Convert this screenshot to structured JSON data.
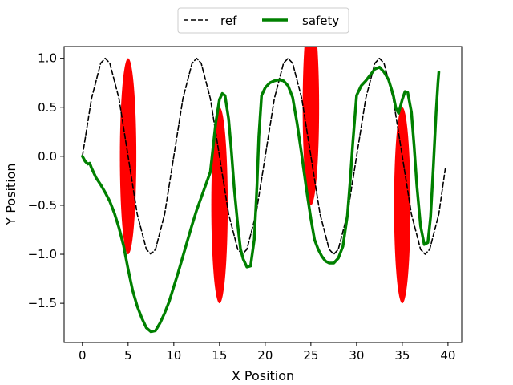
{
  "chart_data": {
    "type": "line",
    "xlabel": "X Position",
    "ylabel": "Y Position",
    "xlim": [
      -2,
      41.5
    ],
    "ylim": [
      -1.9,
      1.12
    ],
    "xticks": [
      0,
      5,
      10,
      15,
      20,
      25,
      30,
      35,
      40
    ],
    "yticks": [
      -1.5,
      -1.0,
      -0.5,
      0.0,
      0.5,
      1.0
    ],
    "ytick_labels": [
      "−1.5",
      "−1.0",
      "−0.5",
      "0.0",
      "0.5",
      "1.0"
    ],
    "grid": false,
    "legend": {
      "placement": "top-center-outside",
      "columns": 2
    },
    "series": [
      {
        "name": "ref",
        "style": "dashed",
        "color": "#000000",
        "x": [
          0,
          1,
          2,
          2.5,
          3,
          4,
          5,
          6,
          7,
          7.5,
          8,
          9,
          10,
          11,
          12,
          12.5,
          13,
          14,
          15,
          16,
          17,
          17.5,
          18,
          19,
          20,
          21,
          22,
          22.5,
          23,
          24,
          25,
          26,
          27,
          27.5,
          28,
          29,
          30,
          31,
          32,
          32.5,
          33,
          34,
          35,
          36,
          37,
          37.5,
          38,
          39,
          39.7
        ],
        "y": [
          0,
          0.59,
          0.95,
          1.0,
          0.95,
          0.59,
          0,
          -0.59,
          -0.95,
          -1.0,
          -0.95,
          -0.59,
          0,
          0.59,
          0.95,
          1.0,
          0.95,
          0.59,
          0,
          -0.59,
          -0.95,
          -1.0,
          -0.95,
          -0.59,
          0,
          0.59,
          0.95,
          1.0,
          0.95,
          0.59,
          0,
          -0.59,
          -0.95,
          -1.0,
          -0.95,
          -0.59,
          0,
          0.59,
          0.95,
          1.0,
          0.95,
          0.59,
          0,
          -0.59,
          -0.95,
          -1.0,
          -0.95,
          -0.59,
          -0.13
        ]
      },
      {
        "name": "safety",
        "style": "solid",
        "color": "#008000",
        "x": [
          0,
          0.3,
          0.6,
          0.8,
          1.0,
          1.5,
          2.0,
          2.5,
          3.0,
          3.5,
          4.0,
          4.5,
          5.0,
          5.5,
          6.0,
          6.5,
          7.0,
          7.5,
          8.0,
          8.5,
          9.0,
          9.5,
          10.0,
          10.5,
          11.0,
          11.5,
          12.0,
          12.5,
          13.0,
          13.5,
          14.0,
          14.3,
          14.6,
          15.0,
          15.3,
          15.6,
          16.0,
          16.3,
          16.6,
          17.0,
          17.3,
          17.6,
          18.0,
          18.4,
          18.8,
          19.1,
          19.3,
          19.6,
          20.0,
          20.5,
          21.0,
          21.5,
          22.0,
          22.5,
          23.0,
          23.5,
          24.0,
          24.5,
          25.0,
          25.4,
          25.8,
          26.2,
          26.6,
          27.0,
          27.5,
          28.0,
          28.5,
          29.0,
          29.3,
          29.6,
          30.0,
          30.5,
          31.0,
          31.5,
          32.0,
          32.5,
          33.0,
          33.5,
          34.0,
          34.3,
          34.6,
          35.0,
          35.3,
          35.6,
          36.0,
          36.3,
          36.6,
          37.0,
          37.4,
          37.8,
          38.1,
          38.4,
          38.7,
          38.9,
          39.0
        ],
        "y": [
          0,
          -0.05,
          -0.08,
          -0.07,
          -0.12,
          -0.22,
          -0.29,
          -0.37,
          -0.46,
          -0.58,
          -0.73,
          -0.91,
          -1.15,
          -1.37,
          -1.53,
          -1.65,
          -1.75,
          -1.79,
          -1.78,
          -1.7,
          -1.6,
          -1.48,
          -1.33,
          -1.18,
          -1.02,
          -0.86,
          -0.7,
          -0.55,
          -0.42,
          -0.29,
          -0.16,
          0.1,
          0.35,
          0.58,
          0.64,
          0.62,
          0.38,
          0.05,
          -0.32,
          -0.7,
          -0.95,
          -1.05,
          -1.13,
          -1.12,
          -0.85,
          -0.3,
          0.2,
          0.62,
          0.7,
          0.75,
          0.77,
          0.78,
          0.77,
          0.72,
          0.6,
          0.33,
          0.01,
          -0.33,
          -0.64,
          -0.85,
          -0.95,
          -1.02,
          -1.07,
          -1.09,
          -1.09,
          -1.04,
          -0.92,
          -0.6,
          -0.25,
          0.15,
          0.62,
          0.72,
          0.77,
          0.83,
          0.89,
          0.91,
          0.86,
          0.78,
          0.63,
          0.49,
          0.44,
          0.58,
          0.66,
          0.65,
          0.45,
          0.1,
          -0.3,
          -0.71,
          -0.9,
          -0.88,
          -0.62,
          -0.1,
          0.45,
          0.75,
          0.86
        ]
      }
    ],
    "obstacles": [
      {
        "x": 5,
        "y": 0.0,
        "rx": 0.9,
        "ry": 1.0,
        "color": "#ff0000"
      },
      {
        "x": 15,
        "y": -0.5,
        "rx": 0.9,
        "ry": 1.0,
        "color": "#ff0000"
      },
      {
        "x": 25,
        "y": 0.5,
        "rx": 0.9,
        "ry": 1.0,
        "color": "#ff0000"
      },
      {
        "x": 35,
        "y": -0.5,
        "rx": 0.9,
        "ry": 1.0,
        "color": "#ff0000"
      }
    ]
  }
}
